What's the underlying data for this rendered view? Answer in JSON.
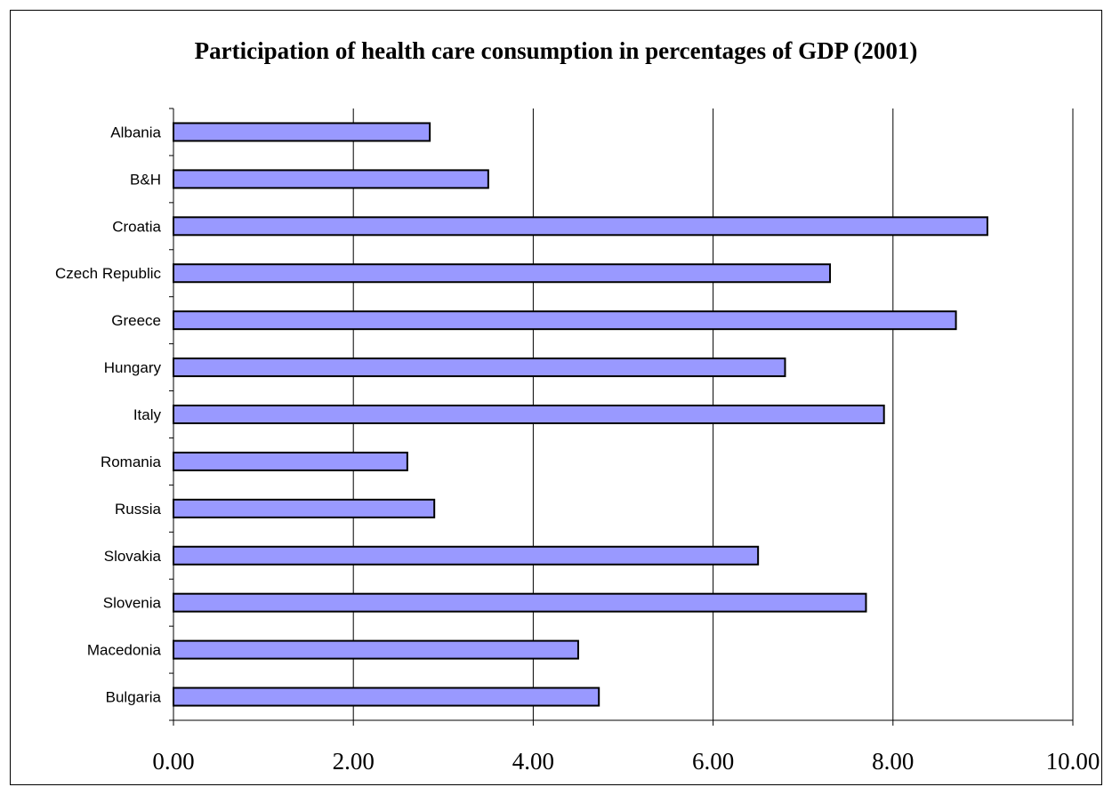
{
  "chart_data": {
    "type": "bar",
    "orientation": "horizontal",
    "title": "Participation of health care consumption in percentages of GDP (2001)",
    "xlabel": "",
    "ylabel": "",
    "categories": [
      "Albania",
      "B&H",
      "Croatia",
      "Czech Republic",
      "Greece",
      "Hungary",
      "Italy",
      "Romania",
      "Russia",
      "Slovakia",
      "Slovenia",
      "Macedonia",
      "Bulgaria"
    ],
    "values": [
      2.85,
      3.5,
      9.05,
      7.3,
      8.7,
      6.8,
      7.9,
      2.6,
      2.9,
      6.5,
      7.7,
      4.5,
      4.73
    ],
    "xlim": [
      0,
      10
    ],
    "ticks": [
      "0.00",
      "2.00",
      "4.00",
      "6.00",
      "8.00",
      "10.00"
    ],
    "grid": true,
    "legend": "none",
    "bar_color": "#9999FF"
  }
}
